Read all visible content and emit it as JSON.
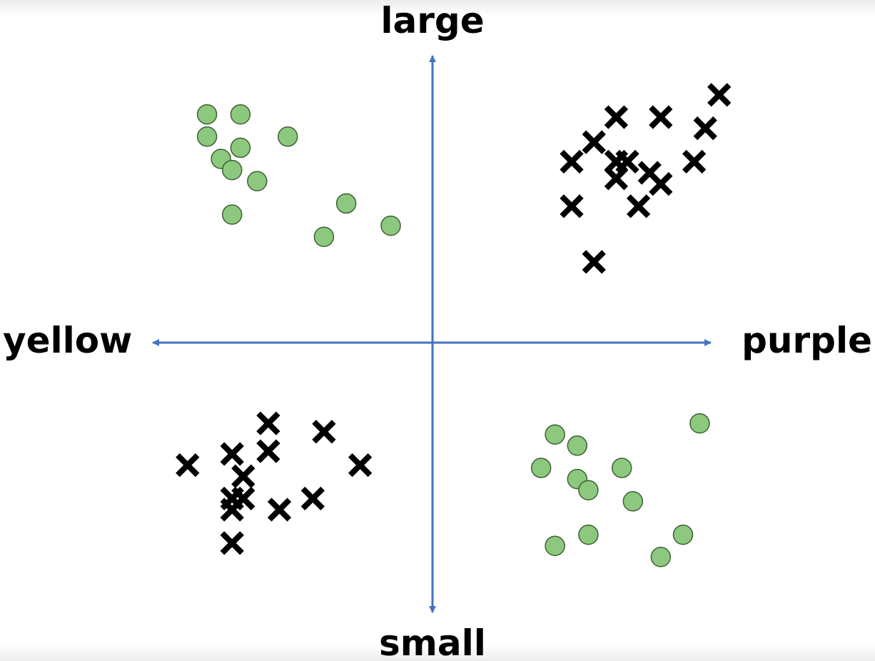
{
  "chart_data": {
    "type": "scatter",
    "title": "",
    "labels": {
      "top": "large",
      "bottom": "small",
      "left": "yellow",
      "right": "purple"
    },
    "x_axis": {
      "negative": "yellow",
      "positive": "purple",
      "range": [
        -10,
        10
      ]
    },
    "y_axis": {
      "negative": "small",
      "positive": "large",
      "range": [
        -10,
        10
      ]
    },
    "grid": false,
    "legend": "none",
    "colors": {
      "axis": "#4472C4",
      "circle_fill": "#8CC97E",
      "circle_stroke": "#3E5E35",
      "cross": "#000000"
    },
    "series": [
      {
        "marker": "circle",
        "points": [
          [
            -8.1,
            8.2
          ],
          [
            -6.9,
            8.2
          ],
          [
            -8.1,
            7.4
          ],
          [
            -5.2,
            7.4
          ],
          [
            -6.9,
            7.0
          ],
          [
            -7.6,
            6.6
          ],
          [
            -7.2,
            6.2
          ],
          [
            -6.3,
            5.8
          ],
          [
            -7.2,
            4.6
          ],
          [
            -3.1,
            5.0
          ],
          [
            -1.5,
            4.2
          ],
          [
            -3.9,
            3.8
          ],
          [
            4.4,
            -3.3
          ],
          [
            5.2,
            -3.7
          ],
          [
            3.9,
            -4.5
          ],
          [
            6.8,
            -4.5
          ],
          [
            5.2,
            -4.9
          ],
          [
            5.6,
            -5.3
          ],
          [
            7.2,
            -5.7
          ],
          [
            5.6,
            -6.9
          ],
          [
            9.0,
            -6.9
          ],
          [
            4.4,
            -7.3
          ],
          [
            8.2,
            -7.7
          ],
          [
            9.6,
            -2.9
          ]
        ]
      },
      {
        "marker": "cross",
        "points": [
          [
            10.3,
            8.9
          ],
          [
            6.6,
            8.1
          ],
          [
            8.2,
            8.1
          ],
          [
            9.8,
            7.7
          ],
          [
            5.8,
            7.2
          ],
          [
            5.0,
            6.5
          ],
          [
            6.6,
            6.5
          ],
          [
            7.0,
            6.5
          ],
          [
            7.8,
            6.1
          ],
          [
            9.4,
            6.5
          ],
          [
            6.6,
            5.9
          ],
          [
            8.2,
            5.7
          ],
          [
            5.0,
            4.9
          ],
          [
            7.4,
            4.9
          ],
          [
            5.8,
            2.9
          ],
          [
            -5.9,
            -2.9
          ],
          [
            -3.9,
            -3.2
          ],
          [
            -7.2,
            -4.0
          ],
          [
            -5.9,
            -3.9
          ],
          [
            -2.6,
            -4.4
          ],
          [
            -8.8,
            -4.4
          ],
          [
            -6.8,
            -4.8
          ],
          [
            -7.2,
            -5.6
          ],
          [
            -6.8,
            -5.6
          ],
          [
            -5.5,
            -6.0
          ],
          [
            -4.3,
            -5.6
          ],
          [
            -7.2,
            -6.0
          ],
          [
            -7.2,
            -7.2
          ]
        ]
      }
    ]
  }
}
